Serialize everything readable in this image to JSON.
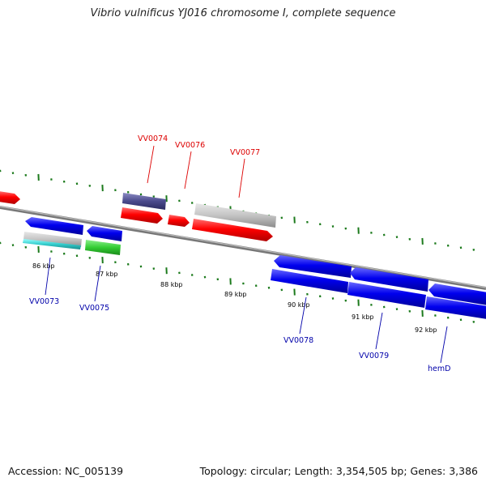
{
  "title": "Vibrio vulnificus YJ016 chromosome I, complete sequence",
  "footer": {
    "accession": "Accession: NC_005139",
    "topology": "Topology: circular; Length: 3,354,505 bp; Genes: 3,386"
  },
  "colors": {
    "backbone": "#8a8a8a",
    "tick": "#1c7a1c",
    "forward_gene": "#ff0000",
    "reverse_gene": "#0000ee",
    "rna_gray": "#bdbdbd",
    "dark_feature": "#4a4a8c",
    "green_feature": "#33cc33",
    "cyan_feature": "#33cccc",
    "label_red": "#dd0000",
    "label_blue": "#0000aa"
  },
  "kbp_labels": [
    "86 kbp",
    "87 kbp",
    "88 kbp",
    "89 kbp",
    "90 kbp",
    "91 kbp",
    "92 kbp"
  ],
  "gene_labels_top": [
    "VV0074",
    "VV0076",
    "VV0077"
  ],
  "gene_labels_bottom": [
    "VV0073",
    "VV0075",
    "VV0078",
    "VV0079",
    "hemD"
  ]
}
